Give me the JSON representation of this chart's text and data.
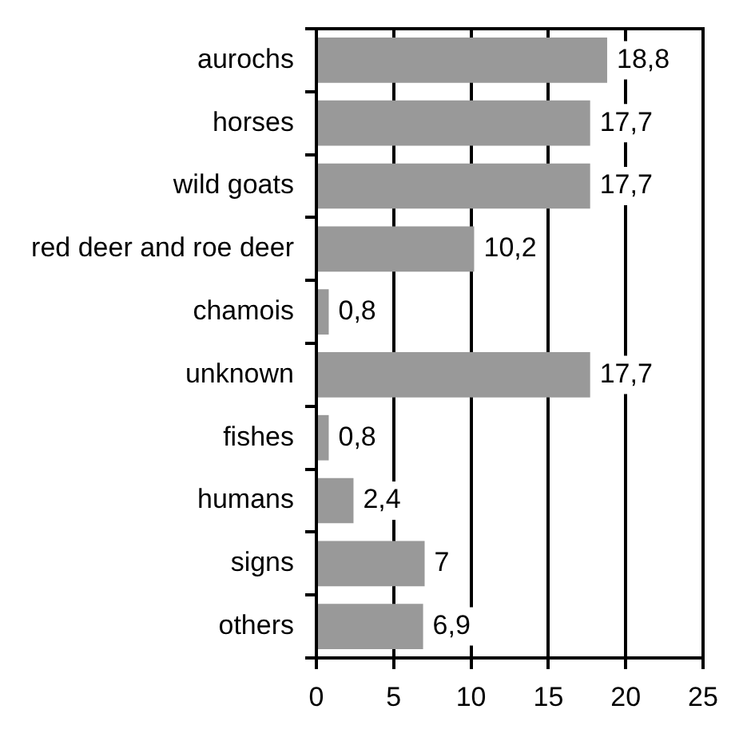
{
  "chart_data": {
    "type": "bar",
    "orientation": "horizontal",
    "categories": [
      "aurochs",
      "horses",
      "wild goats",
      "red deer and roe deer",
      "chamois",
      "unknown",
      "fishes",
      "humans",
      "signs",
      "others"
    ],
    "values": [
      18.8,
      17.7,
      17.7,
      10.2,
      0.8,
      17.7,
      0.8,
      2.4,
      7,
      6.9
    ],
    "value_labels": [
      "18,8",
      "17,7",
      "17,7",
      "10,2",
      "0,8",
      "17,7",
      "0,8",
      "2,4",
      "7",
      "6,9"
    ],
    "color": "#999999",
    "xlim": [
      0,
      25
    ],
    "xticks": [
      0,
      5,
      10,
      15,
      20,
      25
    ],
    "grid": "x"
  }
}
